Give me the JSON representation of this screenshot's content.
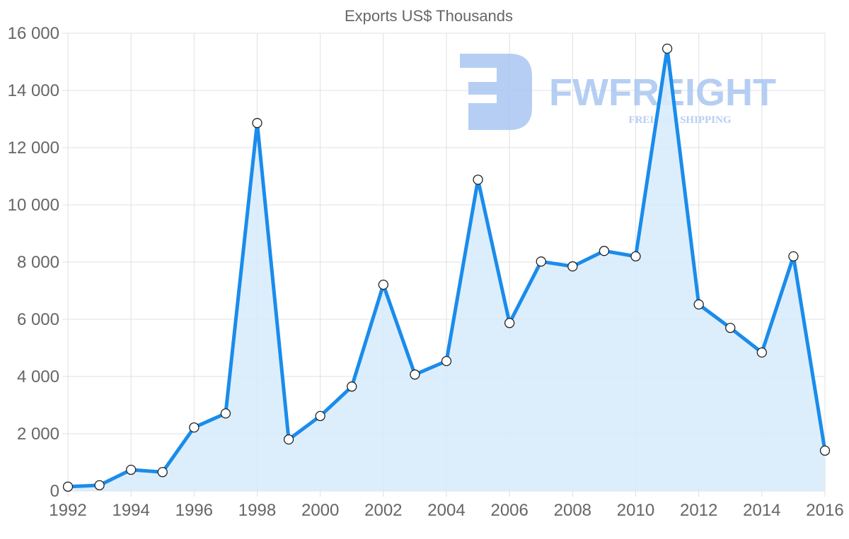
{
  "chart_data": {
    "type": "area",
    "title": "Exports US$ Thousands",
    "xlabel": "",
    "ylabel": "",
    "x": [
      1992,
      1993,
      1994,
      1995,
      1996,
      1997,
      1998,
      1999,
      2000,
      2001,
      2002,
      2003,
      2004,
      2005,
      2006,
      2007,
      2008,
      2009,
      2010,
      2011,
      2012,
      2013,
      2014,
      2015,
      2016
    ],
    "series": [
      {
        "name": "Exports",
        "values": [
          150,
          200,
          740,
          660,
          2220,
          2710,
          12860,
          1800,
          2620,
          3650,
          7210,
          4070,
          4540,
          10880,
          5870,
          8020,
          7850,
          8390,
          8200,
          15460,
          6520,
          5700,
          4840,
          8200,
          1410
        ]
      }
    ],
    "ylim": [
      0,
      16000
    ],
    "xlim": [
      1992,
      2016
    ],
    "y_ticks": [
      "0",
      "2 000",
      "4 000",
      "6 000",
      "8 000",
      "10 000",
      "12 000",
      "14 000",
      "16 000"
    ],
    "x_ticks": [
      "1992",
      "1994",
      "1996",
      "1998",
      "2000",
      "2002",
      "2004",
      "2006",
      "2008",
      "2010",
      "2012",
      "2014",
      "2016"
    ],
    "grid": true,
    "legend": "none",
    "colors": {
      "line": "#1a8ceb",
      "fill": "#d8ecfc",
      "grid": "#e0e0e0",
      "text": "#666666"
    }
  },
  "watermark": {
    "brand": "FWFREIGHT",
    "tagline": "FREIGHT SHIPPING",
    "color": "#a9c6f2"
  }
}
